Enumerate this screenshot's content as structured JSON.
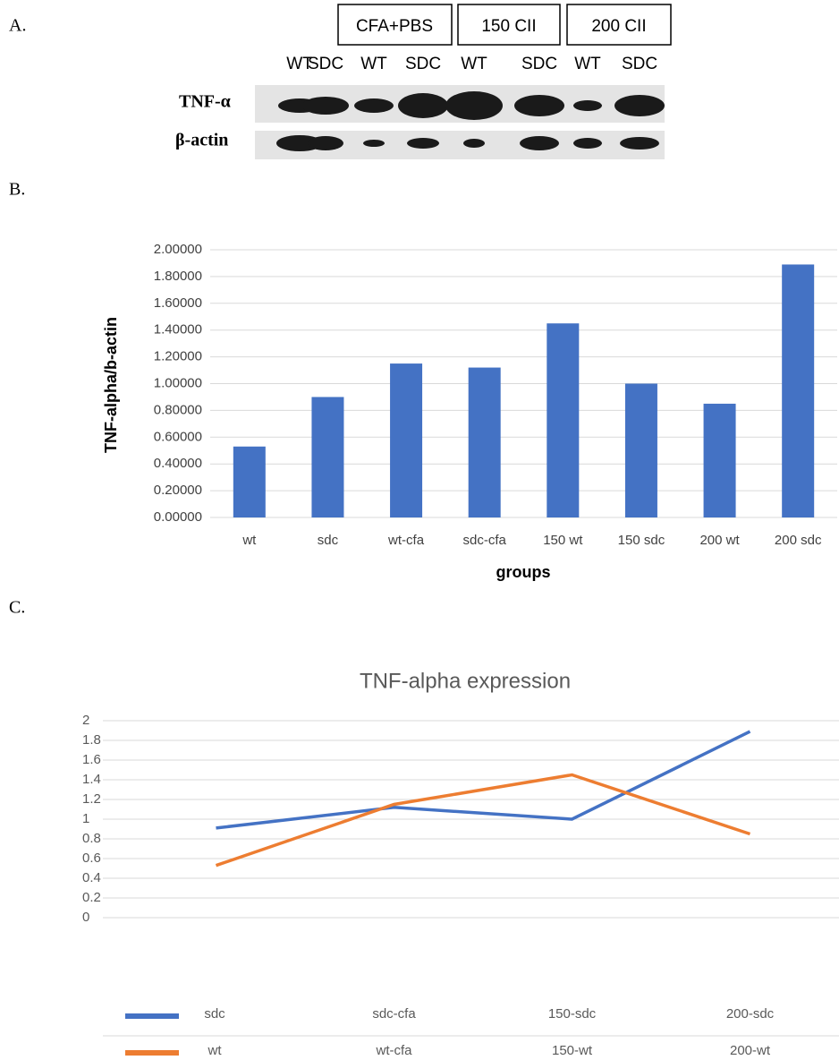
{
  "panel_labels": [
    "A.",
    "B.",
    "C."
  ],
  "blot": {
    "groups": [
      "CFA+PBS",
      "150 CII",
      "200 CII"
    ],
    "lanes": [
      "WT",
      "SDC",
      "WT",
      "SDC",
      "WT",
      "SDC",
      "WT",
      "SDC"
    ],
    "rows": [
      "TNF-α",
      "β-actin"
    ]
  },
  "chart_data": [
    {
      "type": "bar",
      "x_label": "groups",
      "y_label": "TNF-alpha/b-actin",
      "categories": [
        "wt",
        "sdc",
        "wt-cfa",
        "sdc-cfa",
        "150 wt",
        "150 sdc",
        "200 wt",
        "200 sdc"
      ],
      "values": [
        0.53,
        0.9,
        1.15,
        1.12,
        1.45,
        1.0,
        0.85,
        1.89
      ],
      "color": "#4472c4",
      "ylim": [
        0,
        2
      ],
      "grid": true,
      "yticks": [
        {
          "value": 0,
          "label": "0.00000"
        },
        {
          "value": 0.2,
          "label": "0.20000"
        },
        {
          "value": 0.4,
          "label": "0.40000"
        },
        {
          "value": 0.6,
          "label": "0.60000"
        },
        {
          "value": 0.8,
          "label": "0.80000"
        },
        {
          "value": 1,
          "label": "1.00000"
        },
        {
          "value": 1.2,
          "label": "1.20000"
        },
        {
          "value": 1.4,
          "label": "1.40000"
        },
        {
          "value": 1.6,
          "label": "1.60000"
        },
        {
          "value": 1.8,
          "label": "1.80000"
        },
        {
          "value": 2,
          "label": "2.00000"
        }
      ]
    },
    {
      "type": "line",
      "title": "TNF-alpha expression",
      "ylim": [
        0,
        2
      ],
      "grid": true,
      "yticks": [
        0,
        0.2,
        0.4,
        0.6,
        0.8,
        1,
        1.2,
        1.4,
        1.6,
        1.8,
        2
      ],
      "series": [
        {
          "color": "#4472c4",
          "categories": [
            "sdc",
            "sdc-cfa",
            "150-sdc",
            "200-sdc"
          ],
          "values": [
            0.91,
            1.12,
            1.0,
            1.89
          ]
        },
        {
          "color": "#ed7d31",
          "categories": [
            "wt",
            "wt-cfa",
            "150-wt",
            "200-wt"
          ],
          "values": [
            0.53,
            1.15,
            1.45,
            0.85
          ]
        }
      ]
    }
  ]
}
